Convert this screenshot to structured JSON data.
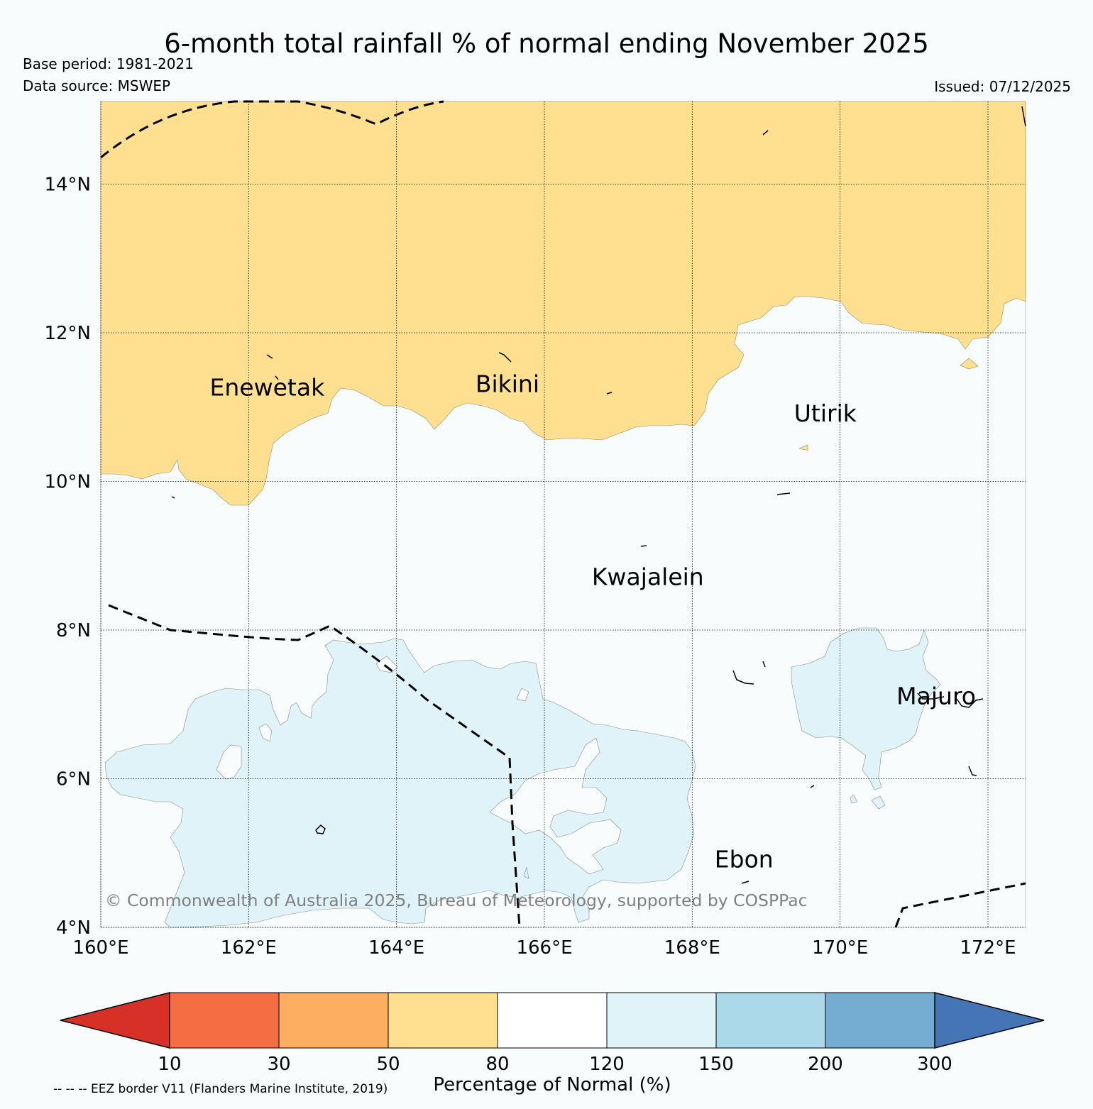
{
  "title": "6-month total rainfall % of normal ending November 2025",
  "base_period": "Base period: 1981-2021",
  "data_source": "Data source: MSWEP",
  "issued": "Issued: 07/12/2025",
  "copyright": "© Commonwealth of Australia 2025, Bureau of Meteorology, supported by COSPPac",
  "eez_note": "-- -- -- EEZ border V11 (Flanders Marine Institute, 2019)",
  "map": {
    "lon_range": [
      160,
      172.5
    ],
    "lat_range": [
      4,
      15
    ],
    "lon_ticks": [
      {
        "value": 160,
        "label": "160°E"
      },
      {
        "value": 162,
        "label": "162°E"
      },
      {
        "value": 164,
        "label": "164°E"
      },
      {
        "value": 166,
        "label": "166°E"
      },
      {
        "value": 168,
        "label": "168°E"
      },
      {
        "value": 170,
        "label": "170°E"
      },
      {
        "value": 172,
        "label": "172°E"
      }
    ],
    "lat_ticks": [
      {
        "value": 4,
        "label": "4°N"
      },
      {
        "value": 6,
        "label": "6°N"
      },
      {
        "value": 8,
        "label": "8°N"
      },
      {
        "value": 10,
        "label": "10°N"
      },
      {
        "value": 12,
        "label": "12°N"
      },
      {
        "value": 14,
        "label": "14°N"
      }
    ],
    "places": [
      {
        "name": "Enewetak",
        "lon": 162.25,
        "lat": 11.25
      },
      {
        "name": "Bikini",
        "lon": 165.5,
        "lat": 11.3
      },
      {
        "name": "Utirik",
        "lon": 169.8,
        "lat": 10.9
      },
      {
        "name": "Kwajalein",
        "lon": 167.4,
        "lat": 8.7
      },
      {
        "name": "Majuro",
        "lon": 171.3,
        "lat": 7.1
      },
      {
        "name": "Ebon",
        "lon": 168.7,
        "lat": 4.9
      }
    ],
    "region_colors": {
      "below_normal_50_80": "#fee090",
      "near_normal_80_120": "#f8fcfd",
      "above_normal_120_150": "#e0f3f8"
    },
    "grid_color": "#000000",
    "eez_color": "#000000"
  },
  "colorbar": {
    "label": "Percentage of Normal (%)",
    "ticks": [
      "10",
      "30",
      "50",
      "80",
      "120",
      "150",
      "200",
      "300"
    ],
    "under_color": "#d73027",
    "over_color": "#4575b4",
    "colors": [
      "#f46d43",
      "#fdae61",
      "#fee090",
      "#ffffff",
      "#e0f3f8",
      "#abd9e9",
      "#74add1"
    ]
  }
}
